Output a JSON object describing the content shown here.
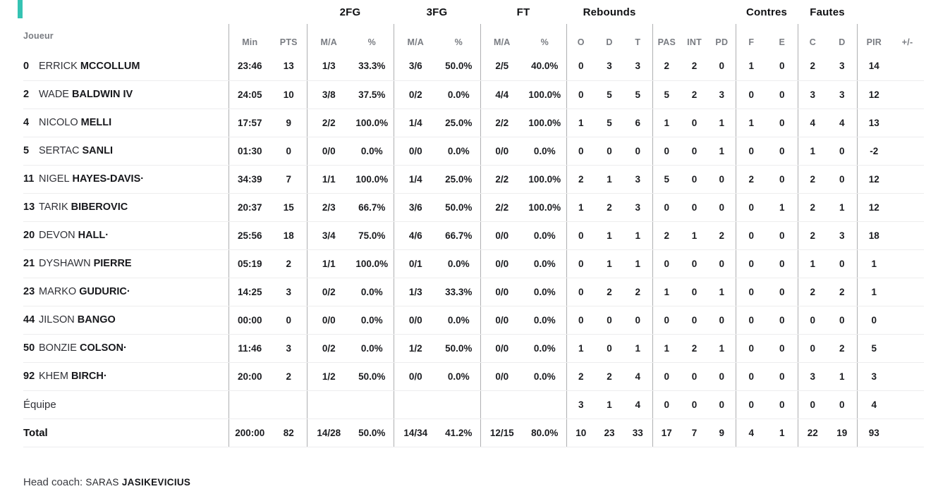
{
  "page": {
    "accent_color": "#35c3b3"
  },
  "table": {
    "group_headers": {
      "fg2": "2FG",
      "fg3": "3FG",
      "ft": "FT",
      "rebounds": "Rebounds",
      "contres": "Contres",
      "fautes": "Fautes"
    },
    "sub_headers": {
      "player": "Joueur",
      "min": "Min",
      "pts": "PTS",
      "ma": "M/A",
      "pct": "%",
      "o": "O",
      "d": "D",
      "t": "T",
      "pas": "PAS",
      "int": "INT",
      "pd": "PD",
      "f": "F",
      "e": "E",
      "c": "C",
      "d2": "D",
      "pir": "PIR",
      "plus_minus": "+/-"
    },
    "players": [
      {
        "num": "0",
        "first": "ERRICK",
        "last": "MCCOLLUM",
        "stats": [
          "23:46",
          "13",
          "1/3",
          "33.3%",
          "3/6",
          "50.0%",
          "2/5",
          "40.0%",
          "0",
          "3",
          "3",
          "2",
          "2",
          "0",
          "1",
          "0",
          "2",
          "3",
          "14",
          ""
        ]
      },
      {
        "num": "2",
        "first": "WADE",
        "last": "BALDWIN IV",
        "stats": [
          "24:05",
          "10",
          "3/8",
          "37.5%",
          "0/2",
          "0.0%",
          "4/4",
          "100.0%",
          "0",
          "5",
          "5",
          "5",
          "2",
          "3",
          "0",
          "0",
          "3",
          "3",
          "12",
          ""
        ]
      },
      {
        "num": "4",
        "first": "NICOLO",
        "last": "MELLI",
        "stats": [
          "17:57",
          "9",
          "2/2",
          "100.0%",
          "1/4",
          "25.0%",
          "2/2",
          "100.0%",
          "1",
          "5",
          "6",
          "1",
          "0",
          "1",
          "1",
          "0",
          "4",
          "4",
          "13",
          ""
        ]
      },
      {
        "num": "5",
        "first": "SERTAC",
        "last": "SANLI",
        "stats": [
          "01:30",
          "0",
          "0/0",
          "0.0%",
          "0/0",
          "0.0%",
          "0/0",
          "0.0%",
          "0",
          "0",
          "0",
          "0",
          "0",
          "1",
          "0",
          "0",
          "1",
          "0",
          "-2",
          ""
        ]
      },
      {
        "num": "11",
        "first": "NIGEL",
        "last": "HAYES-DAVIS·",
        "stats": [
          "34:39",
          "7",
          "1/1",
          "100.0%",
          "1/4",
          "25.0%",
          "2/2",
          "100.0%",
          "2",
          "1",
          "3",
          "5",
          "0",
          "0",
          "2",
          "0",
          "2",
          "0",
          "12",
          ""
        ]
      },
      {
        "num": "13",
        "first": "TARIK",
        "last": "BIBEROVIC",
        "stats": [
          "20:37",
          "15",
          "2/3",
          "66.7%",
          "3/6",
          "50.0%",
          "2/2",
          "100.0%",
          "1",
          "2",
          "3",
          "0",
          "0",
          "0",
          "0",
          "1",
          "2",
          "1",
          "12",
          ""
        ]
      },
      {
        "num": "20",
        "first": "DEVON",
        "last": "HALL·",
        "stats": [
          "25:56",
          "18",
          "3/4",
          "75.0%",
          "4/6",
          "66.7%",
          "0/0",
          "0.0%",
          "0",
          "1",
          "1",
          "2",
          "1",
          "2",
          "0",
          "0",
          "2",
          "3",
          "18",
          ""
        ]
      },
      {
        "num": "21",
        "first": "DYSHAWN",
        "last": "PIERRE",
        "stats": [
          "05:19",
          "2",
          "1/1",
          "100.0%",
          "0/1",
          "0.0%",
          "0/0",
          "0.0%",
          "0",
          "1",
          "1",
          "0",
          "0",
          "0",
          "0",
          "0",
          "1",
          "0",
          "1",
          ""
        ]
      },
      {
        "num": "23",
        "first": "MARKO",
        "last": "GUDURIC·",
        "stats": [
          "14:25",
          "3",
          "0/2",
          "0.0%",
          "1/3",
          "33.3%",
          "0/0",
          "0.0%",
          "0",
          "2",
          "2",
          "1",
          "0",
          "1",
          "0",
          "0",
          "2",
          "2",
          "1",
          ""
        ]
      },
      {
        "num": "44",
        "first": "JILSON",
        "last": "BANGO",
        "stats": [
          "00:00",
          "0",
          "0/0",
          "0.0%",
          "0/0",
          "0.0%",
          "0/0",
          "0.0%",
          "0",
          "0",
          "0",
          "0",
          "0",
          "0",
          "0",
          "0",
          "0",
          "0",
          "0",
          ""
        ]
      },
      {
        "num": "50",
        "first": "BONZIE",
        "last": "COLSON·",
        "stats": [
          "11:46",
          "3",
          "0/2",
          "0.0%",
          "1/2",
          "50.0%",
          "0/0",
          "0.0%",
          "1",
          "0",
          "1",
          "1",
          "2",
          "1",
          "0",
          "0",
          "0",
          "2",
          "5",
          ""
        ]
      },
      {
        "num": "92",
        "first": "KHEM",
        "last": "BIRCH·",
        "stats": [
          "20:00",
          "2",
          "1/2",
          "50.0%",
          "0/0",
          "0.0%",
          "0/0",
          "0.0%",
          "2",
          "2",
          "4",
          "0",
          "0",
          "0",
          "0",
          "0",
          "3",
          "1",
          "3",
          ""
        ]
      }
    ],
    "team_row": {
      "label": "Équipe",
      "stats": [
        "",
        "",
        "",
        "",
        "",
        "",
        "",
        "",
        "3",
        "1",
        "4",
        "0",
        "0",
        "0",
        "0",
        "0",
        "0",
        "0",
        "4",
        ""
      ]
    },
    "total_row": {
      "label": "Total",
      "stats": [
        "200:00",
        "82",
        "14/28",
        "50.0%",
        "14/34",
        "41.2%",
        "12/15",
        "80.0%",
        "10",
        "23",
        "33",
        "17",
        "7",
        "9",
        "4",
        "1",
        "22",
        "19",
        "93",
        ""
      ]
    }
  },
  "footer": {
    "head_coach_label": "Head coach:",
    "coach_first_name": "SARAS",
    "coach_last_name": "JASIKEVICIUS"
  }
}
